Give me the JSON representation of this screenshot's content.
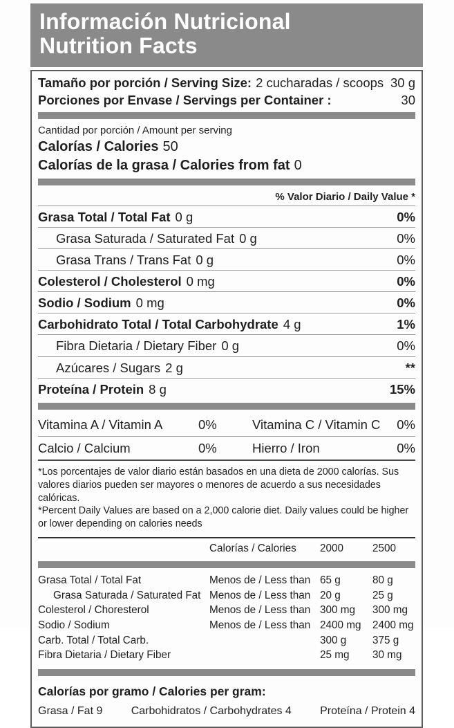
{
  "colors": {
    "header_bg": "#8a8a8a",
    "separator_bar": "#8a8a8a",
    "header_text": "#ffffff",
    "body_text": "#1f1f1f"
  },
  "header": {
    "title_es": "Información Nutricional",
    "title_en": "Nutrition Facts"
  },
  "serving": {
    "size_label": "Tamaño por porción / Serving Size:",
    "size_value": "2 cucharadas / scoops",
    "size_amount": "30 g",
    "container_label": "Porciones por Envase / Servings per Container :",
    "container_value": "30"
  },
  "amount_per_serving": "Cantidad por porción / Amount per serving",
  "calories": {
    "label": "Calorías / Calories",
    "value": "50"
  },
  "calories_from_fat": {
    "label": "Calorías de la grasa / Calories  from fat",
    "value": "0"
  },
  "daily_value_header": "% Valor Diario / Daily Value *",
  "nutrients": [
    {
      "label": "Grasa Total / Total Fat",
      "amount": "0 g",
      "dv": "0%"
    },
    {
      "label": "Grasa Saturada / Saturated Fat",
      "amount": "0 g",
      "dv": "0%"
    },
    {
      "label": "Grasa Trans / Trans Fat",
      "amount": "0 g",
      "dv": "0%"
    },
    {
      "label": "Colesterol / Cholesterol",
      "amount": "0 mg",
      "dv": "0%"
    },
    {
      "label": "Sodio / Sodium",
      "amount": "0 mg",
      "dv": "0%"
    },
    {
      "label": "Carbohidrato Total / Total Carbohydrate",
      "amount": "4 g",
      "dv": "1%"
    },
    {
      "label": "Fibra Dietaria / Dietary Fiber",
      "amount": "0 g",
      "dv": "0%"
    },
    {
      "label": "Azúcares / Sugars",
      "amount": "2 g",
      "dv": "**"
    },
    {
      "label": "Proteína / Protein",
      "amount": "8 g",
      "dv": "15%"
    }
  ],
  "vitamins": [
    {
      "left_label": "Vitamina A / Vitamin A",
      "left_value": "0%",
      "right_label": "Vitamina C / Vitamin C",
      "right_value": "0%"
    },
    {
      "left_label": "Calcio / Calcium",
      "left_value": "0%",
      "right_label": "Hierro / Iron",
      "right_value": "0%"
    }
  ],
  "footnotes": {
    "es": "*Los porcentajes de valor diario están basados en una dieta de 2000 calorías. Sus valores diarios pueden ser mayores o menores de acuerdo a sus necesidades calóricas.",
    "en": "*Percent Daily Values are based on a 2,000 calorie diet. Daily values could be higher or lower depending on calories needs"
  },
  "reference_table": {
    "header": {
      "label": "Calorías / Calories",
      "col_2000": "2000",
      "col_2500": "2500"
    },
    "rows": [
      {
        "nutrient": "Grasa Total / Total Fat",
        "condition": "Menos de / Less than",
        "v2000": "65 g",
        "v2500": "80 g"
      },
      {
        "nutrient": "Grasa Saturada / Saturated Fat",
        "condition": "Menos de / Less than",
        "v2000": "20 g",
        "v2500": "25 g"
      },
      {
        "nutrient": "Colesterol / Choresterol",
        "condition": "Menos de / Less than",
        "v2000": "300 mg",
        "v2500": "300 mg"
      },
      {
        "nutrient": "Sodio / Sodium",
        "condition": "Menos de / Less than",
        "v2000": "2400 mg",
        "v2500": "2400 mg"
      },
      {
        "nutrient": "Carb. Total / Total Carb.",
        "condition": "",
        "v2000": "300 g",
        "v2500": "375 g"
      },
      {
        "nutrient": "Fibra Dietaria / Dietary Fiber",
        "condition": "",
        "v2000": "25 mg",
        "v2500": "30 mg"
      }
    ]
  },
  "calories_per_gram": {
    "title": "Calorías por gramo / Calories per gram:",
    "fat": "Grasa / Fat  9",
    "carbohydrates": "Carbohidratos / Carbohydrates 4",
    "protein": "Proteína / Protein 4"
  }
}
